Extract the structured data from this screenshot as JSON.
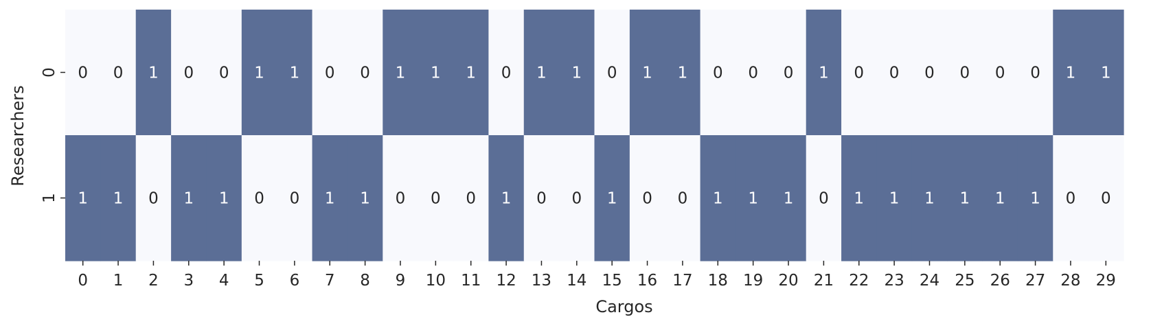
{
  "chart_data": {
    "type": "heatmap",
    "xlabel": "Cargos",
    "ylabel": "Researchers",
    "x_categories": [
      "0",
      "1",
      "2",
      "3",
      "4",
      "5",
      "6",
      "7",
      "8",
      "9",
      "10",
      "11",
      "12",
      "13",
      "14",
      "15",
      "16",
      "17",
      "18",
      "19",
      "20",
      "21",
      "22",
      "23",
      "24",
      "25",
      "26",
      "27",
      "28",
      "29"
    ],
    "y_categories": [
      "0",
      "1"
    ],
    "values": [
      [
        0,
        0,
        1,
        0,
        0,
        1,
        1,
        0,
        0,
        1,
        1,
        1,
        0,
        1,
        1,
        0,
        1,
        1,
        0,
        0,
        0,
        1,
        0,
        0,
        0,
        0,
        0,
        0,
        1,
        1
      ],
      [
        1,
        1,
        0,
        1,
        1,
        0,
        0,
        1,
        1,
        0,
        0,
        0,
        1,
        0,
        0,
        1,
        0,
        0,
        1,
        1,
        1,
        0,
        1,
        1,
        1,
        1,
        1,
        1,
        0,
        0
      ]
    ],
    "annotations": true,
    "colorbar": false,
    "colors": {
      "low": "#f8f9fd",
      "high": "#5b6e96",
      "text_on_low": "#262626",
      "text_on_high": "#ffffff"
    }
  }
}
